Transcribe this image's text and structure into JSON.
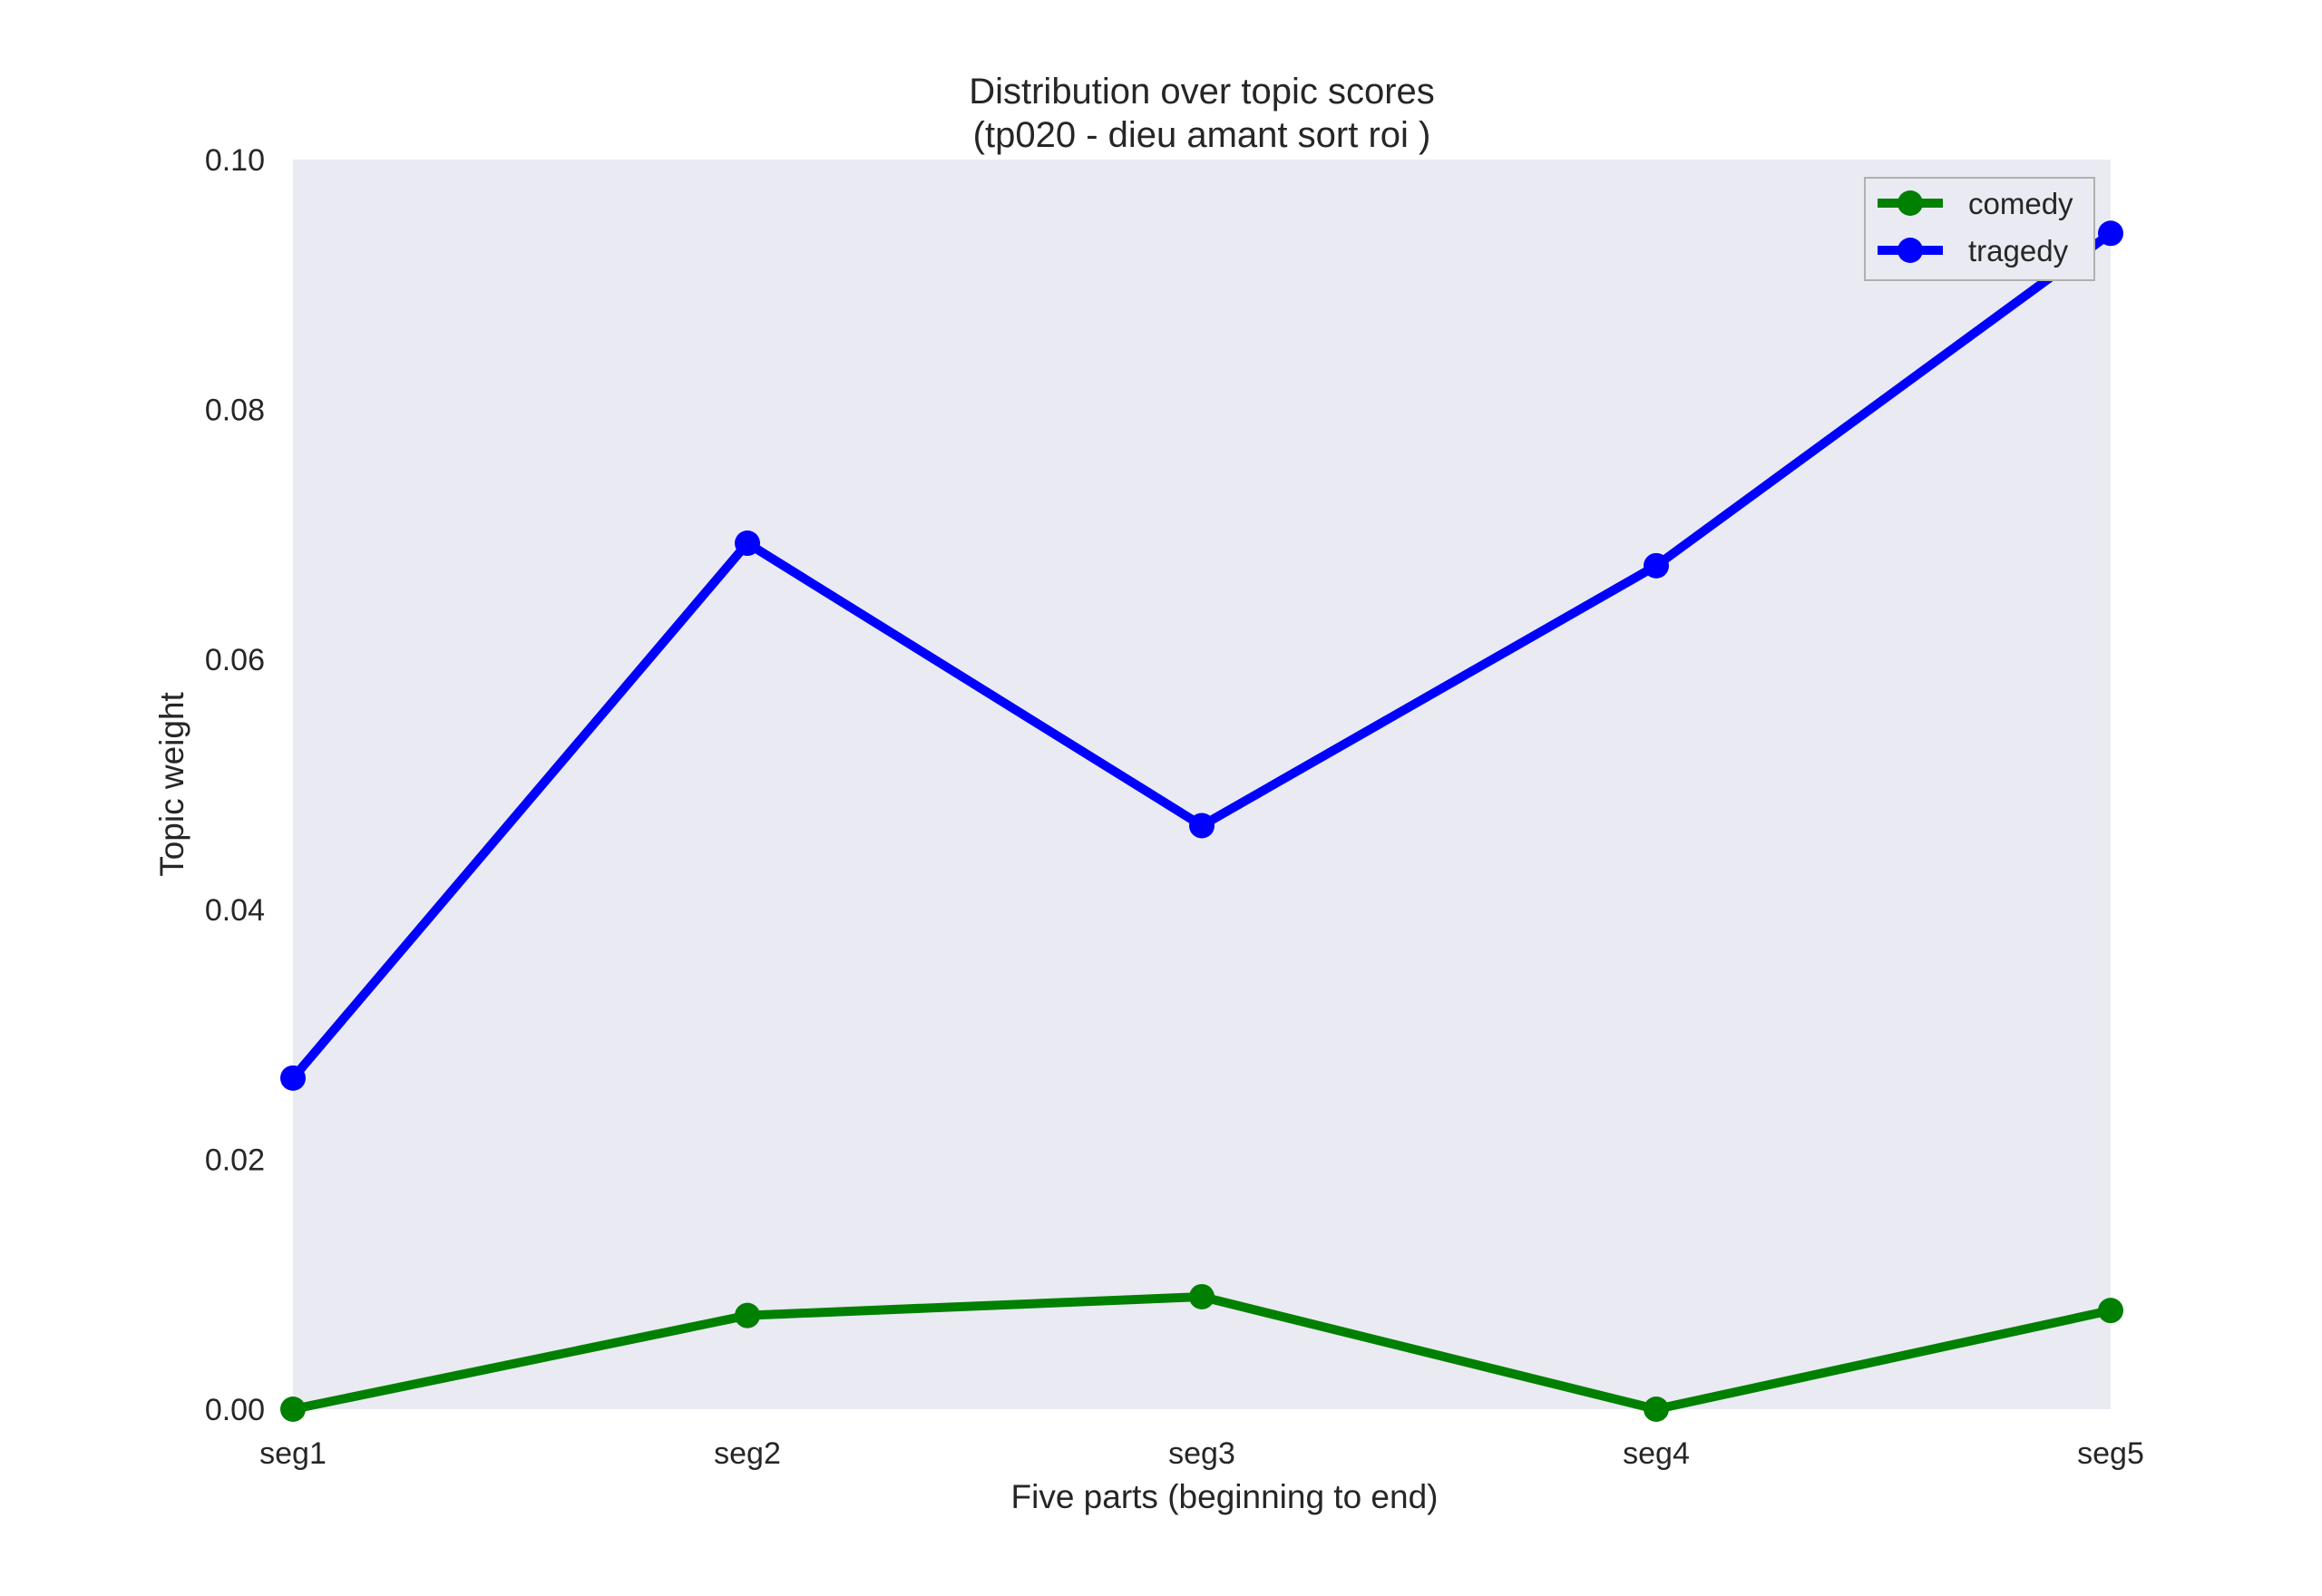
{
  "chart_data": {
    "type": "line",
    "title": "Distribution over topic scores",
    "subtitle": "(tp020 - dieu amant sort roi )",
    "xlabel": "Five parts (beginning to end)",
    "ylabel": "Topic weight",
    "categories": [
      "seg1",
      "seg2",
      "seg3",
      "seg4",
      "seg5"
    ],
    "ylim": [
      0,
      0.1
    ],
    "yticks": [
      "0.00",
      "0.02",
      "0.04",
      "0.06",
      "0.08",
      "0.10"
    ],
    "grid": false,
    "legend_position": "top-right",
    "background": "#eaeaf2",
    "series": [
      {
        "name": "comedy",
        "color": "#008000",
        "marker": "circle",
        "values": [
          0.0,
          0.0075,
          0.009,
          0.0,
          0.0079
        ]
      },
      {
        "name": "tragedy",
        "color": "#0000ff",
        "marker": "circle",
        "values": [
          0.0265,
          0.0693,
          0.0467,
          0.0675,
          0.0941
        ]
      }
    ]
  }
}
